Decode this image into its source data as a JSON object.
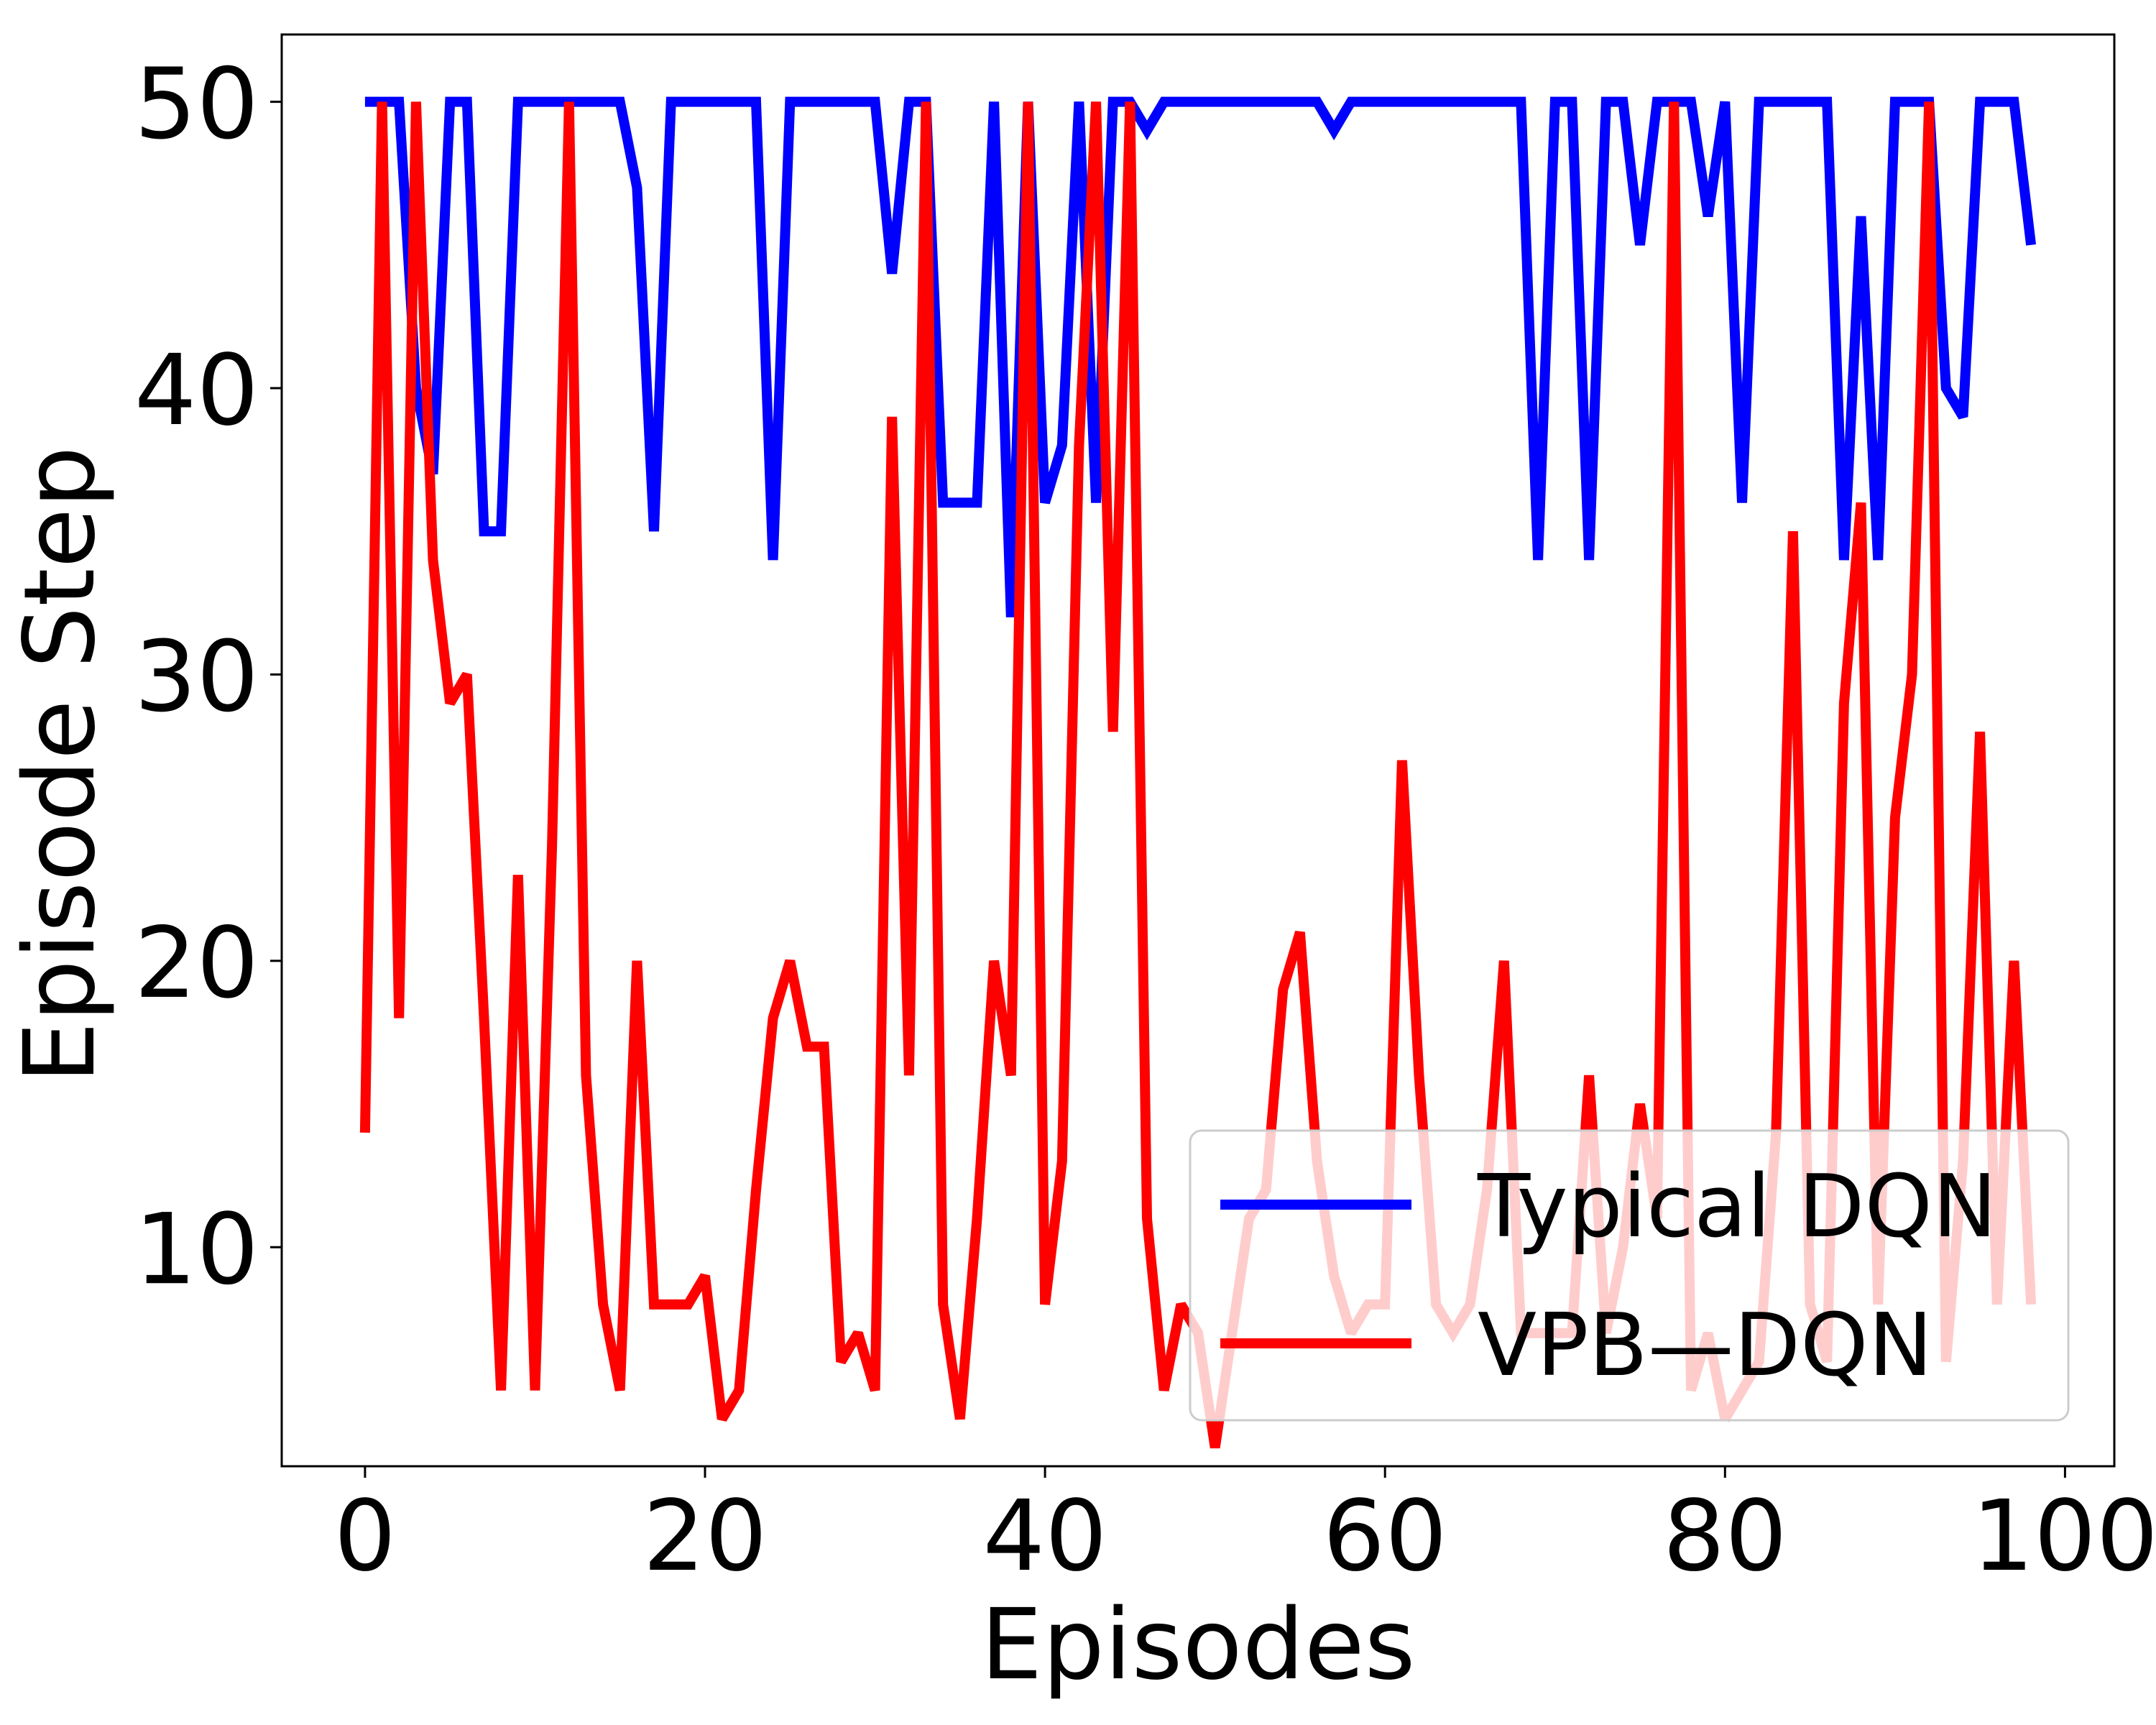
{
  "chart_data": {
    "type": "line",
    "xlabel": "Episodes",
    "ylabel": "Episode Step",
    "xlim": [
      -4.9,
      102.9
    ],
    "ylim": [
      2.35,
      52.35
    ],
    "xticks": [
      0,
      20,
      40,
      60,
      80,
      100
    ],
    "yticks": [
      10,
      20,
      30,
      40,
      50
    ],
    "legend_position": "lower right",
    "grid": false,
    "series": [
      {
        "name": "Typical DQN",
        "color": "#0000ff",
        "x": [
          0,
          1,
          2,
          3,
          4,
          5,
          6,
          7,
          8,
          9,
          10,
          11,
          12,
          13,
          14,
          15,
          16,
          17,
          18,
          19,
          20,
          21,
          22,
          23,
          24,
          25,
          26,
          27,
          28,
          29,
          30,
          31,
          32,
          33,
          34,
          35,
          36,
          37,
          38,
          39,
          40,
          41,
          42,
          43,
          44,
          45,
          46,
          47,
          48,
          49,
          50,
          51,
          52,
          53,
          54,
          55,
          56,
          57,
          58,
          59,
          60,
          61,
          62,
          63,
          64,
          65,
          66,
          67,
          68,
          69,
          70,
          71,
          72,
          73,
          74,
          75,
          76,
          77,
          78,
          79,
          80,
          81,
          82,
          83,
          84,
          85,
          86,
          87,
          88,
          89,
          90,
          91,
          92,
          93,
          94,
          95,
          96,
          97,
          98
        ],
        "values": [
          50,
          50,
          50,
          40,
          37,
          50,
          50,
          35,
          35,
          50,
          50,
          50,
          50,
          50,
          50,
          50,
          47,
          35,
          50,
          50,
          50,
          50,
          50,
          50,
          34,
          50,
          50,
          50,
          50,
          50,
          50,
          44,
          50,
          50,
          36,
          36,
          36,
          50,
          32,
          50,
          36,
          38,
          50,
          36,
          50,
          50,
          49,
          50,
          50,
          50,
          50,
          50,
          50,
          50,
          50,
          50,
          50,
          49,
          50,
          50,
          50,
          50,
          50,
          50,
          50,
          50,
          50,
          50,
          50,
          34,
          50,
          50,
          34,
          50,
          50,
          45,
          50,
          50,
          50,
          46,
          50,
          36,
          50,
          50,
          50,
          50,
          50,
          34,
          46,
          34,
          50,
          50,
          50,
          40,
          39,
          50,
          50,
          50,
          45
        ]
      },
      {
        "name": "VPB—DQN",
        "color": "#ff0000",
        "x": [
          0,
          1,
          2,
          3,
          4,
          5,
          6,
          7,
          8,
          9,
          10,
          11,
          12,
          13,
          14,
          15,
          16,
          17,
          18,
          19,
          20,
          21,
          22,
          23,
          24,
          25,
          26,
          27,
          28,
          29,
          30,
          31,
          32,
          33,
          34,
          35,
          36,
          37,
          38,
          39,
          40,
          41,
          42,
          43,
          44,
          45,
          46,
          47,
          48,
          49,
          50,
          51,
          52,
          53,
          54,
          55,
          56,
          57,
          58,
          59,
          60,
          61,
          62,
          63,
          64,
          65,
          66,
          67,
          68,
          69,
          70,
          71,
          72,
          73,
          74,
          75,
          76,
          77,
          78,
          79,
          80,
          81,
          82,
          83,
          84,
          85,
          86,
          87,
          88,
          89,
          90,
          91,
          92,
          93,
          94,
          95,
          96,
          97,
          98
        ],
        "values": [
          14,
          50,
          18,
          50,
          34,
          29,
          30,
          18,
          5,
          23,
          5,
          24,
          50,
          16,
          8,
          5,
          20,
          8,
          8,
          8,
          9,
          4,
          5,
          12,
          18,
          20,
          17,
          17,
          6,
          7,
          5,
          39,
          16,
          50,
          8,
          4,
          11,
          20,
          16,
          50,
          8,
          13,
          38,
          50,
          28,
          50,
          11,
          5,
          8,
          7,
          3,
          7,
          11,
          12,
          19,
          21,
          13,
          9,
          7,
          8,
          8,
          27,
          16,
          8,
          7,
          8,
          12,
          20,
          7,
          7,
          7,
          7,
          16,
          7,
          10,
          15,
          11,
          50,
          5,
          7,
          4,
          5,
          6,
          14,
          35,
          8,
          6,
          29,
          36,
          8,
          25,
          30,
          50,
          6,
          13,
          28,
          8,
          20,
          8
        ]
      }
    ]
  }
}
